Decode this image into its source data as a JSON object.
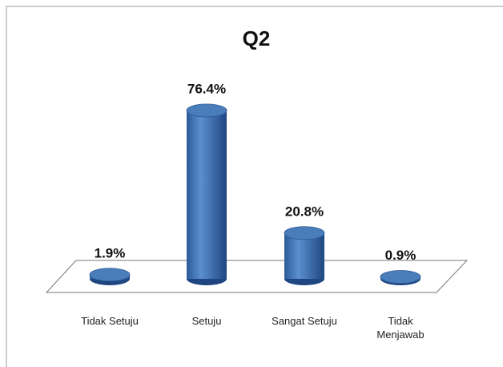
{
  "chart_data": {
    "type": "bar",
    "title": "Q2",
    "categories": [
      "Tidak Setuju",
      "Setuju",
      "Sangat Setuju",
      "Tidak Menjawab"
    ],
    "values": [
      1.9,
      76.4,
      20.8,
      0.9
    ],
    "value_labels": [
      "1.9%",
      "76.4%",
      "20.8%",
      "0.9%"
    ],
    "color": "#4a7ebb"
  }
}
